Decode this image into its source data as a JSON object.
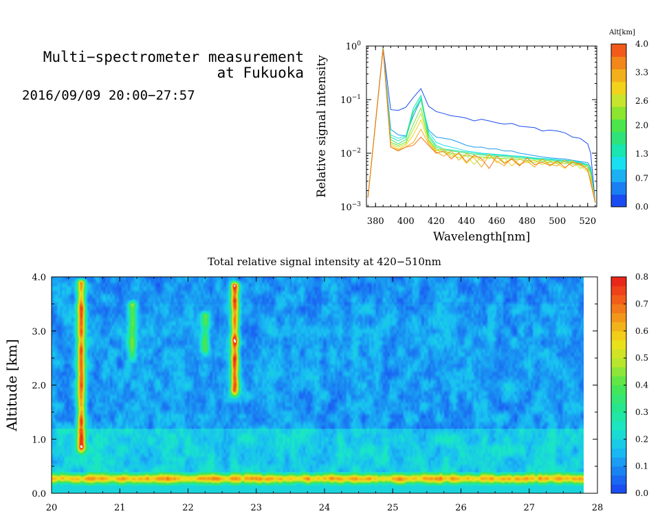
{
  "header": {
    "title_line1": "Multi−spectrometer measurement",
    "title_line2": "at Fukuoka",
    "datetime": "2016/09/09 20:00−27:57"
  },
  "colors": {
    "alt_scale": [
      "#1a4cf2",
      "#1a7ff2",
      "#1ab0f2",
      "#19e0f0",
      "#19e6b0",
      "#2ee37a",
      "#4ce64c",
      "#8ce52e",
      "#c8e52e",
      "#f2d21a",
      "#f2b11a",
      "#f2871a",
      "#f25a1a"
    ],
    "intensity_scale": [
      "#1a40f2",
      "#1a80f2",
      "#19c0f2",
      "#19e6c8",
      "#26e68a",
      "#4ce64c",
      "#b4e62e",
      "#f2e01a",
      "#f2a01a",
      "#f25a1a",
      "#e61a1a"
    ]
  },
  "chart_data": [
    {
      "type": "line",
      "title": "",
      "xlabel": "Wavelength[nm]",
      "ylabel": "Relative signal intensity",
      "xlim": [
        374,
        526
      ],
      "ylim": [
        0.001,
        1
      ],
      "yscale": "log",
      "x_ticks": [
        "380",
        "400",
        "420",
        "440",
        "460",
        "480",
        "500",
        "520"
      ],
      "y_tick_labels": [
        {
          "base": "10",
          "exp": "0"
        },
        {
          "base": "10",
          "exp": "−1"
        },
        {
          "base": "10",
          "exp": "−2"
        },
        {
          "base": "10",
          "exp": "−3"
        }
      ],
      "colorbar": {
        "label": "Alt[km]",
        "tick_labels": [
          "4.0",
          "3.3",
          "2.6",
          "2.0",
          "1.3",
          "0.7",
          "0.0"
        ],
        "range": [
          0,
          4
        ]
      },
      "x": [
        375,
        385,
        390,
        395,
        400,
        405,
        410,
        415,
        420,
        425,
        430,
        435,
        440,
        445,
        450,
        455,
        460,
        465,
        470,
        475,
        480,
        485,
        490,
        495,
        500,
        505,
        510,
        515,
        520,
        522,
        525
      ],
      "series": [
        {
          "alt": 0.0,
          "values": [
            0.0015,
            0.95,
            0.065,
            0.063,
            0.072,
            0.11,
            0.16,
            0.075,
            0.06,
            0.055,
            0.05,
            0.048,
            0.045,
            0.04,
            0.043,
            0.04,
            0.037,
            0.035,
            0.036,
            0.032,
            0.031,
            0.03,
            0.026,
            0.027,
            0.026,
            0.024,
            0.02,
            0.019,
            0.015,
            0.01,
            0.0012
          ]
        },
        {
          "alt": 0.5,
          "values": [
            0.0015,
            0.93,
            0.028,
            0.022,
            0.021,
            0.05,
            0.1,
            0.027,
            0.02,
            0.019,
            0.018,
            0.016,
            0.014,
            0.013,
            0.013,
            0.012,
            0.012,
            0.011,
            0.011,
            0.01,
            0.0095,
            0.009,
            0.0085,
            0.0082,
            0.008,
            0.0078,
            0.0074,
            0.007,
            0.0067,
            0.0055,
            0.0012
          ]
        },
        {
          "alt": 1.0,
          "values": [
            0.0015,
            0.92,
            0.022,
            0.019,
            0.021,
            0.06,
            0.11,
            0.025,
            0.016,
            0.014,
            0.013,
            0.012,
            0.011,
            0.0105,
            0.01,
            0.0098,
            0.0095,
            0.0093,
            0.009,
            0.0088,
            0.0085,
            0.0082,
            0.008,
            0.0078,
            0.0076,
            0.0074,
            0.0072,
            0.0068,
            0.0062,
            0.005,
            0.0012
          ]
        },
        {
          "alt": 1.4,
          "values": [
            0.0015,
            0.91,
            0.02,
            0.017,
            0.02,
            0.07,
            0.12,
            0.022,
            0.014,
            0.012,
            0.0115,
            0.011,
            0.0105,
            0.01,
            0.0097,
            0.0094,
            0.0092,
            0.009,
            0.0088,
            0.0085,
            0.0083,
            0.008,
            0.0078,
            0.0076,
            0.0074,
            0.0072,
            0.0069,
            0.0066,
            0.006,
            0.0047,
            0.0012
          ]
        },
        {
          "alt": 1.8,
          "values": [
            0.0015,
            0.9,
            0.018,
            0.015,
            0.018,
            0.058,
            0.1,
            0.02,
            0.013,
            0.0115,
            0.011,
            0.0105,
            0.01,
            0.0095,
            0.0093,
            0.009,
            0.0088,
            0.0086,
            0.0084,
            0.0081,
            0.008,
            0.0077,
            0.0075,
            0.0073,
            0.0071,
            0.0069,
            0.0067,
            0.0064,
            0.0058,
            0.0044,
            0.0012
          ]
        },
        {
          "alt": 2.2,
          "values": [
            0.0015,
            0.9,
            0.016,
            0.014,
            0.016,
            0.035,
            0.07,
            0.018,
            0.012,
            0.011,
            0.01,
            0.0095,
            0.009,
            0.0087,
            0.0085,
            0.0083,
            0.0081,
            0.008,
            0.0078,
            0.0076,
            0.0074,
            0.0072,
            0.007,
            0.0068,
            0.0066,
            0.0065,
            0.0063,
            0.006,
            0.0055,
            0.004,
            0.0012
          ]
        },
        {
          "alt": 2.6,
          "values": [
            0.0015,
            0.89,
            0.015,
            0.013,
            0.015,
            0.028,
            0.055,
            0.017,
            0.0115,
            0.0102,
            0.0095,
            0.0082,
            0.009,
            0.0062,
            0.0085,
            0.0079,
            0.0088,
            0.0068,
            0.0076,
            0.0062,
            0.0071,
            0.0066,
            0.0078,
            0.0058,
            0.0069,
            0.0064,
            0.0073,
            0.0052,
            0.006,
            0.0038,
            0.0012
          ]
        },
        {
          "alt": 3.0,
          "values": [
            0.0015,
            0.89,
            0.014,
            0.012,
            0.014,
            0.022,
            0.042,
            0.016,
            0.011,
            0.012,
            0.0085,
            0.0098,
            0.0064,
            0.0088,
            0.0072,
            0.0095,
            0.0066,
            0.0082,
            0.0058,
            0.0079,
            0.0066,
            0.0074,
            0.0061,
            0.0071,
            0.0063,
            0.0052,
            0.0072,
            0.0058,
            0.0045,
            0.0034,
            0.0012
          ]
        },
        {
          "alt": 3.4,
          "values": [
            0.0015,
            0.88,
            0.013,
            0.0115,
            0.013,
            0.016,
            0.028,
            0.015,
            0.0105,
            0.0088,
            0.011,
            0.0074,
            0.0098,
            0.0082,
            0.0055,
            0.0093,
            0.0071,
            0.0058,
            0.0084,
            0.006,
            0.0072,
            0.0055,
            0.0078,
            0.0062,
            0.0058,
            0.0075,
            0.0056,
            0.0066,
            0.0048,
            0.003,
            0.0012
          ]
        },
        {
          "alt": 3.8,
          "values": [
            0.0015,
            0.88,
            0.013,
            0.011,
            0.013,
            0.014,
            0.02,
            0.014,
            0.01,
            0.011,
            0.0078,
            0.0102,
            0.0068,
            0.0092,
            0.0079,
            0.0052,
            0.0088,
            0.0064,
            0.0078,
            0.0058,
            0.0082,
            0.0061,
            0.0068,
            0.0059,
            0.0072,
            0.0054,
            0.0068,
            0.0062,
            0.005,
            0.0028,
            0.0012
          ]
        }
      ]
    },
    {
      "type": "heatmap",
      "title": "Total relative signal intensity at 420−510nm",
      "xlabel": "",
      "ylabel": "Altitude [km]",
      "xlim": [
        20,
        28
      ],
      "ylim": [
        0,
        4
      ],
      "x_ticks": [
        "20",
        "21",
        "22",
        "23",
        "24",
        "25",
        "26",
        "27",
        "28"
      ],
      "y_ticks": [
        "0.0",
        "1.0",
        "2.0",
        "3.0",
        "4.0"
      ],
      "data_xrange": [
        20,
        27.8
      ],
      "colorbar": {
        "range": [
          0,
          0.8
        ],
        "tick_labels": [
          "0.8",
          "0.7",
          "0.6",
          "0.5",
          "0.4",
          "0.3",
          "0.2",
          "0.1",
          "0.0"
        ]
      },
      "features": {
        "background_value": 0.17,
        "upper_region_value": 0.12,
        "near_ground_band": {
          "alt_range": [
            0.15,
            0.4
          ],
          "value": 0.5
        },
        "cloud_plumes": [
          {
            "x": 20.43,
            "alt_range": [
              0.7,
              4.0
            ],
            "peak_alt": 1.4,
            "peak_value": 0.75
          },
          {
            "x": 21.18,
            "alt_range": [
              2.4,
              3.6
            ],
            "peak_alt": 3.1,
            "peak_value": 0.45
          },
          {
            "x": 22.68,
            "alt_range": [
              1.75,
              3.95
            ],
            "peak_alt": 2.8,
            "peak_value": 0.85
          },
          {
            "x": 22.25,
            "alt_range": [
              2.5,
              3.4
            ],
            "peak_alt": 2.9,
            "peak_value": 0.4
          }
        ]
      }
    }
  ]
}
